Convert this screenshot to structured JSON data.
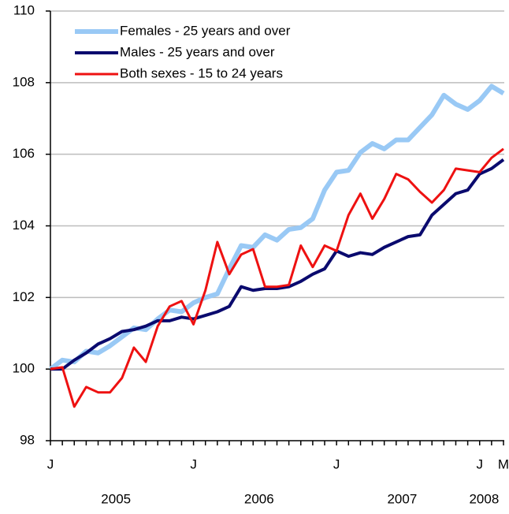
{
  "chart_data": {
    "type": "line",
    "categories": [
      "J",
      null,
      null,
      null,
      null,
      null,
      null,
      null,
      null,
      null,
      null,
      null,
      "J",
      null,
      null,
      null,
      null,
      null,
      null,
      null,
      null,
      null,
      null,
      null,
      "J",
      null,
      null,
      null,
      null,
      null,
      null,
      null,
      null,
      null,
      null,
      null,
      "J",
      null,
      "M"
    ],
    "year_labels": [
      "2005",
      "2006",
      "2007",
      "2008"
    ],
    "series": [
      {
        "name": "Females - 25 years and over",
        "color": "#99c9f5",
        "width": 6,
        "values": [
          100.0,
          100.25,
          100.2,
          100.5,
          100.45,
          100.65,
          100.9,
          101.15,
          101.1,
          101.4,
          101.65,
          101.6,
          101.85,
          102.0,
          102.1,
          102.8,
          103.45,
          103.4,
          103.75,
          103.6,
          103.9,
          103.95,
          104.2,
          105.0,
          105.5,
          105.55,
          106.05,
          106.3,
          106.15,
          106.4,
          106.4,
          106.75,
          107.1,
          107.65,
          107.4,
          107.25,
          107.5,
          107.9,
          107.7
        ]
      },
      {
        "name": "Males - 25 years and over",
        "color": "#0a0a6e",
        "width": 4,
        "values": [
          100.0,
          100.0,
          100.25,
          100.45,
          100.7,
          100.85,
          101.05,
          101.1,
          101.2,
          101.35,
          101.35,
          101.45,
          101.4,
          101.5,
          101.6,
          101.75,
          102.3,
          102.2,
          102.25,
          102.25,
          102.3,
          102.45,
          102.65,
          102.8,
          103.3,
          103.15,
          103.25,
          103.2,
          103.4,
          103.55,
          103.7,
          103.75,
          104.3,
          104.6,
          104.9,
          105.0,
          105.45,
          105.6,
          105.85
        ]
      },
      {
        "name": "Both sexes - 15 to 24 years",
        "color": "#ee1111",
        "width": 3,
        "values": [
          100.0,
          100.05,
          98.95,
          99.5,
          99.35,
          99.35,
          99.75,
          100.6,
          100.2,
          101.2,
          101.75,
          101.9,
          101.25,
          102.2,
          103.55,
          102.65,
          103.2,
          103.35,
          102.3,
          102.3,
          102.35,
          103.45,
          102.85,
          103.45,
          103.3,
          104.3,
          104.9,
          104.2,
          104.75,
          105.45,
          105.3,
          104.95,
          104.65,
          105.0,
          105.6,
          105.55,
          105.5,
          105.9,
          106.15
        ]
      }
    ],
    "ylim": [
      98,
      110
    ],
    "yticks": [
      98,
      100,
      102,
      104,
      106,
      108,
      110
    ],
    "grid": true,
    "legend": "top-left"
  }
}
